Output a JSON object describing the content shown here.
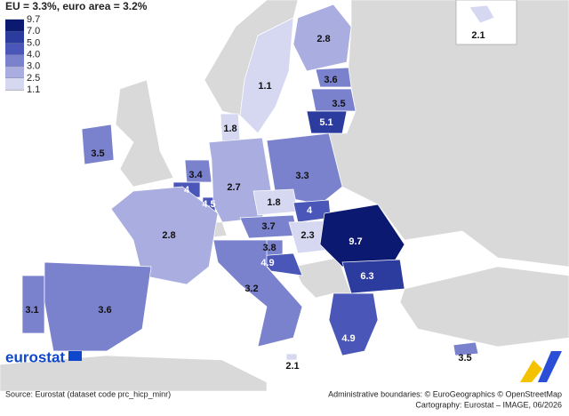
{
  "title": "EU = 3.3%, euro area = 3.2%",
  "legend": {
    "breaks": [
      9.7,
      {
        "value": 7,
        "label": "7.0"
      },
      {
        "value": 5,
        "label": "5.0"
      },
      {
        "value": 4,
        "label": "4.0"
      },
      {
        "value": 3,
        "label": "3.0"
      },
      2.5,
      1.1
    ],
    "colors": [
      "#0b1970",
      "#2b3b9e",
      "#4a56b8",
      "#7b82cd",
      "#a9addf",
      "#d6d8f1"
    ]
  },
  "map": {
    "values": [
      2.8,
      1.1,
      3.6,
      3.5,
      5.1,
      1.8,
      3.5,
      3.4,
      4.0,
      4.5,
      2.7,
      3.3,
      1.8,
      4.0,
      2.8,
      3.7,
      2.3,
      9.7,
      3.8,
      4.9,
      6.3,
      3.2,
      3.1,
      3.6,
      4.9,
      2.1,
      3.5,
      2.1
    ]
  },
  "footer": {
    "logo": "eurostat",
    "source": "Source: Eurostat (dataset code prc_hicp_minr)",
    "boundaries": "Administrative boundaries: © EuroGeographics © OpenStreetMap",
    "cartography": "Cartography: Eurostat – IMAGE, 06/2026"
  }
}
